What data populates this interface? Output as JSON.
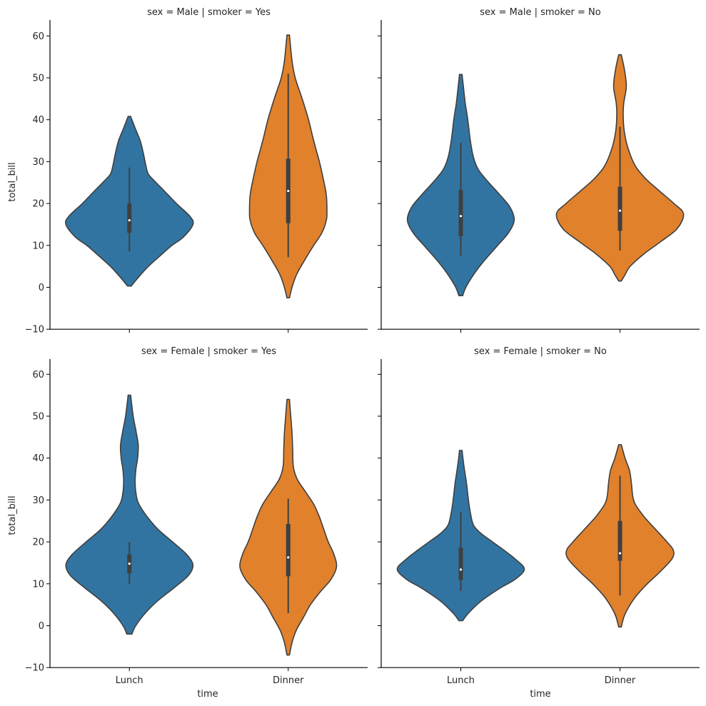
{
  "chart_data": {
    "type": "violin",
    "row_var": "sex",
    "col_var": "smoker",
    "xlabel": "time",
    "ylabel": "total_bill",
    "categories": [
      "Lunch",
      "Dinner"
    ],
    "palette": {
      "Lunch": "#3274a1",
      "Dinner": "#e1812c"
    },
    "line_color": "#3f3f3f",
    "ylim": [
      -10,
      64
    ],
    "yticks": [
      -10,
      0,
      10,
      20,
      30,
      40,
      50,
      60
    ],
    "ytick_labels": [
      "−10",
      "0",
      "10",
      "20",
      "30",
      "40",
      "50",
      "60"
    ],
    "panels": [
      {
        "title": "sex = Male | smoker = Yes",
        "violins": [
          {
            "category": "Lunch",
            "min": 0.3,
            "max": 40.8,
            "whisker_low": 8.6,
            "whisker_high": 28.6,
            "q1": 13.0,
            "q3": 20.0,
            "median": 16.0,
            "density": [
              [
                0.3,
                0.03
              ],
              [
                2,
                0.12
              ],
              [
                5,
                0.3
              ],
              [
                8,
                0.52
              ],
              [
                10,
                0.67
              ],
              [
                12,
                0.85
              ],
              [
                15,
                1.0
              ],
              [
                17,
                0.95
              ],
              [
                20,
                0.74
              ],
              [
                23,
                0.55
              ],
              [
                25,
                0.42
              ],
              [
                27,
                0.3
              ],
              [
                29,
                0.26
              ],
              [
                32,
                0.22
              ],
              [
                35,
                0.17
              ],
              [
                38,
                0.09
              ],
              [
                40.8,
                0.02
              ]
            ]
          },
          {
            "category": "Dinner",
            "min": -2.5,
            "max": 60.2,
            "whisker_low": 7.2,
            "whisker_high": 51.0,
            "q1": 15.3,
            "q3": 30.7,
            "median": 23.0,
            "density": [
              [
                -2.5,
                0.02
              ],
              [
                0,
                0.06
              ],
              [
                3,
                0.13
              ],
              [
                6,
                0.24
              ],
              [
                10,
                0.4
              ],
              [
                13,
                0.53
              ],
              [
                16,
                0.6
              ],
              [
                18,
                0.61
              ],
              [
                22,
                0.6
              ],
              [
                26,
                0.55
              ],
              [
                30,
                0.49
              ],
              [
                35,
                0.4
              ],
              [
                40,
                0.32
              ],
              [
                45,
                0.22
              ],
              [
                50,
                0.11
              ],
              [
                54,
                0.06
              ],
              [
                60.2,
                0.02
              ]
            ]
          }
        ]
      },
      {
        "title": "sex = Male | smoker = No",
        "violins": [
          {
            "category": "Lunch",
            "min": -2.0,
            "max": 50.8,
            "whisker_low": 7.5,
            "whisker_high": 34.5,
            "q1": 12.2,
            "q3": 23.2,
            "median": 17.0,
            "density": [
              [
                -2,
                0.03
              ],
              [
                0,
                0.08
              ],
              [
                3,
                0.2
              ],
              [
                6,
                0.35
              ],
              [
                10,
                0.58
              ],
              [
                13,
                0.75
              ],
              [
                16,
                0.84
              ],
              [
                19,
                0.78
              ],
              [
                22,
                0.62
              ],
              [
                25,
                0.44
              ],
              [
                28,
                0.28
              ],
              [
                31,
                0.2
              ],
              [
                35,
                0.15
              ],
              [
                40,
                0.11
              ],
              [
                44,
                0.07
              ],
              [
                48,
                0.04
              ],
              [
                50.8,
                0.02
              ]
            ]
          },
          {
            "category": "Dinner",
            "min": 1.5,
            "max": 55.5,
            "whisker_low": 8.8,
            "whisker_high": 38.3,
            "q1": 13.5,
            "q3": 24.0,
            "median": 18.3,
            "density": [
              [
                1.5,
                0.02
              ],
              [
                3,
                0.08
              ],
              [
                5,
                0.16
              ],
              [
                8,
                0.38
              ],
              [
                11,
                0.65
              ],
              [
                14,
                0.9
              ],
              [
                17.5,
                1.0
              ],
              [
                20,
                0.85
              ],
              [
                23,
                0.62
              ],
              [
                26,
                0.4
              ],
              [
                29,
                0.24
              ],
              [
                33,
                0.13
              ],
              [
                37,
                0.07
              ],
              [
                41,
                0.05
              ],
              [
                44,
                0.06
              ],
              [
                48,
                0.1
              ],
              [
                52,
                0.07
              ],
              [
                55.5,
                0.02
              ]
            ]
          }
        ]
      },
      {
        "title": "sex = Female | smoker = Yes",
        "violins": [
          {
            "category": "Lunch",
            "min": -2.0,
            "max": 55.0,
            "whisker_low": 10.0,
            "whisker_high": 20.0,
            "q1": 12.5,
            "q3": 17.0,
            "median": 14.8,
            "density": [
              [
                -2,
                0.04
              ],
              [
                0,
                0.1
              ],
              [
                3,
                0.25
              ],
              [
                6,
                0.45
              ],
              [
                9,
                0.7
              ],
              [
                12,
                0.93
              ],
              [
                14.5,
                1.0
              ],
              [
                17,
                0.9
              ],
              [
                20,
                0.68
              ],
              [
                23,
                0.45
              ],
              [
                26,
                0.28
              ],
              [
                29,
                0.15
              ],
              [
                31,
                0.11
              ],
              [
                34,
                0.09
              ],
              [
                37,
                0.1
              ],
              [
                40,
                0.13
              ],
              [
                43,
                0.14
              ],
              [
                46,
                0.11
              ],
              [
                50,
                0.06
              ],
              [
                55,
                0.02
              ]
            ]
          },
          {
            "category": "Dinner",
            "min": -7.0,
            "max": 54.0,
            "whisker_low": 3.0,
            "whisker_high": 30.3,
            "q1": 11.8,
            "q3": 24.3,
            "median": 16.3,
            "density": [
              [
                -7,
                0.02
              ],
              [
                -4,
                0.06
              ],
              [
                -1,
                0.13
              ],
              [
                2,
                0.24
              ],
              [
                5,
                0.35
              ],
              [
                8,
                0.5
              ],
              [
                11,
                0.67
              ],
              [
                14,
                0.76
              ],
              [
                17,
                0.72
              ],
              [
                20,
                0.63
              ],
              [
                23,
                0.56
              ],
              [
                26,
                0.49
              ],
              [
                29,
                0.4
              ],
              [
                32,
                0.27
              ],
              [
                35,
                0.14
              ],
              [
                38,
                0.08
              ],
              [
                42,
                0.07
              ],
              [
                46,
                0.06
              ],
              [
                50,
                0.04
              ],
              [
                54,
                0.02
              ]
            ]
          }
        ]
      },
      {
        "title": "sex = Female | smoker = No",
        "violins": [
          {
            "category": "Lunch",
            "min": 1.2,
            "max": 41.8,
            "whisker_low": 8.3,
            "whisker_high": 27.2,
            "q1": 10.9,
            "q3": 18.6,
            "median": 13.4,
            "density": [
              [
                1.2,
                0.03
              ],
              [
                3,
                0.12
              ],
              [
                6,
                0.33
              ],
              [
                9,
                0.62
              ],
              [
                11,
                0.85
              ],
              [
                13.5,
                1.0
              ],
              [
                16,
                0.85
              ],
              [
                18,
                0.68
              ],
              [
                20,
                0.5
              ],
              [
                22,
                0.32
              ],
              [
                24,
                0.2
              ],
              [
                27,
                0.15
              ],
              [
                30,
                0.12
              ],
              [
                34,
                0.09
              ],
              [
                38,
                0.05
              ],
              [
                41.8,
                0.02
              ]
            ]
          },
          {
            "category": "Dinner",
            "min": -0.3,
            "max": 43.2,
            "whisker_low": 7.2,
            "whisker_high": 35.8,
            "q1": 15.5,
            "q3": 25.0,
            "median": 17.3,
            "density": [
              [
                -0.3,
                0.02
              ],
              [
                2,
                0.06
              ],
              [
                4,
                0.12
              ],
              [
                7,
                0.25
              ],
              [
                10,
                0.43
              ],
              [
                13,
                0.64
              ],
              [
                16,
                0.82
              ],
              [
                18,
                0.84
              ],
              [
                20,
                0.74
              ],
              [
                23,
                0.56
              ],
              [
                26,
                0.38
              ],
              [
                29,
                0.24
              ],
              [
                31,
                0.2
              ],
              [
                34,
                0.18
              ],
              [
                37,
                0.15
              ],
              [
                40,
                0.08
              ],
              [
                43.2,
                0.02
              ]
            ]
          }
        ]
      }
    ]
  }
}
